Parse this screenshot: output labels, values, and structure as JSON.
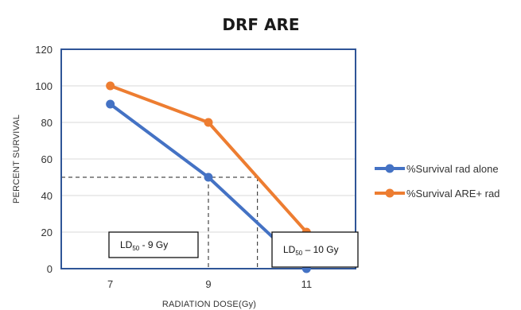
{
  "chart_data": {
    "type": "line",
    "title": "DRF ARE",
    "xlabel": "RADIATION DOSE(Gy)",
    "ylabel": "PERCENT SURVIVAL",
    "x": [
      7,
      9,
      11
    ],
    "xlim": [
      6,
      12
    ],
    "ylim": [
      0,
      120
    ],
    "yticks": [
      0,
      20,
      40,
      60,
      80,
      100,
      120
    ],
    "grid": true,
    "legend_position": "right",
    "series": [
      {
        "name": "%Survival rad alone",
        "values": [
          90,
          50,
          0
        ],
        "color": "#4472C4"
      },
      {
        "name": "%Survival ARE+ rad",
        "values": [
          100,
          80,
          20
        ],
        "color": "#ED7D31"
      }
    ],
    "reference_lines": [
      {
        "y": 50,
        "x_end": 9
      },
      {
        "y": 50,
        "x_end": 10
      }
    ],
    "annotations": [
      {
        "text": "LD",
        "sub": "50",
        "rest": " -  9 Gy"
      },
      {
        "text": "LD",
        "sub": "50",
        "rest": " – 10 Gy"
      }
    ]
  }
}
